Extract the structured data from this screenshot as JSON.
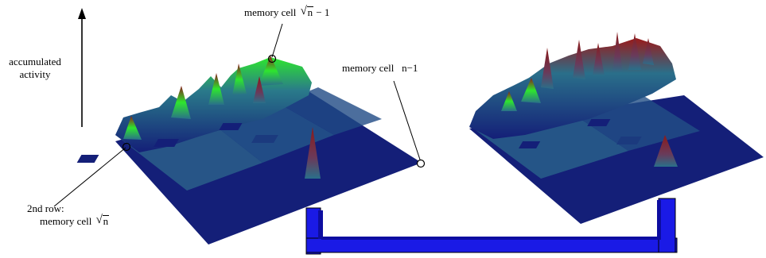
{
  "axis": {
    "label_line1": "accumulated",
    "label_line2": "activity"
  },
  "labels": {
    "top_cell": {
      "prefix": "memory cell",
      "radicand": "n",
      "suffix": "− 1"
    },
    "last_cell": {
      "prefix": "memory cell",
      "value": "n−1"
    },
    "second_row": {
      "line1": "2nd row:",
      "prefix": "memory cell",
      "radicand": "n"
    }
  },
  "colors": {
    "base": "#141f78",
    "mid": "#2a6f8a",
    "green": "#2ee62e",
    "red": "#8a1a1a",
    "connector": "#1a1ae6"
  }
}
